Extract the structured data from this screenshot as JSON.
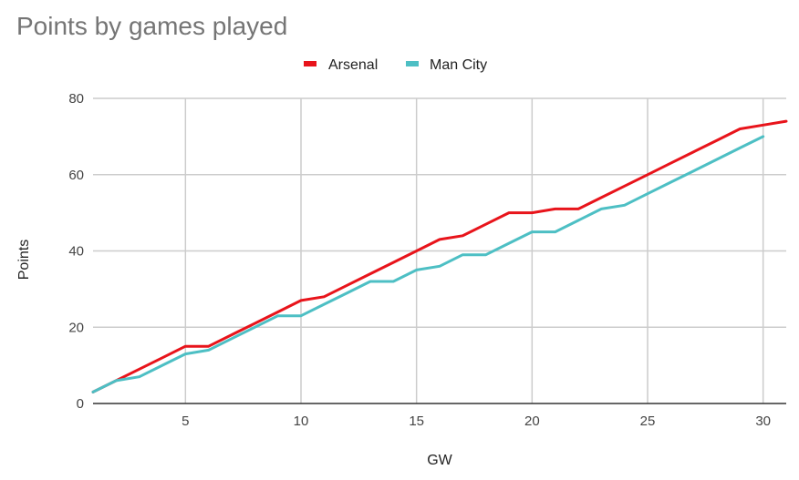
{
  "chart_data": {
    "type": "line",
    "title": "Points by games played",
    "xlabel": "GW",
    "ylabel": "Points",
    "xlim": [
      1,
      31
    ],
    "ylim": [
      0,
      80
    ],
    "x_ticks": [
      5,
      10,
      15,
      20,
      25,
      30
    ],
    "y_ticks": [
      0,
      20,
      40,
      60,
      80
    ],
    "grid": true,
    "legend_position": "top-center",
    "series": [
      {
        "name": "Arsenal",
        "color": "#e8141b",
        "x": [
          1,
          2,
          3,
          4,
          5,
          6,
          7,
          8,
          9,
          10,
          11,
          12,
          13,
          14,
          15,
          16,
          17,
          18,
          19,
          20,
          21,
          22,
          23,
          24,
          25,
          26,
          27,
          28,
          29,
          30,
          31
        ],
        "values": [
          3,
          6,
          9,
          12,
          15,
          15,
          18,
          21,
          24,
          27,
          28,
          31,
          34,
          37,
          40,
          43,
          44,
          47,
          50,
          50,
          51,
          51,
          54,
          57,
          60,
          63,
          66,
          69,
          72,
          73,
          74
        ]
      },
      {
        "name": "Man City",
        "color": "#4dbfc4",
        "x": [
          1,
          2,
          3,
          4,
          5,
          6,
          7,
          8,
          9,
          10,
          11,
          12,
          13,
          14,
          15,
          16,
          17,
          18,
          19,
          20,
          21,
          22,
          23,
          24,
          25,
          26,
          27,
          28,
          29,
          30
        ],
        "values": [
          3,
          6,
          7,
          10,
          13,
          14,
          17,
          20,
          23,
          23,
          26,
          29,
          32,
          32,
          35,
          36,
          39,
          39,
          42,
          45,
          45,
          48,
          51,
          52,
          55,
          58,
          61,
          64,
          67,
          70
        ]
      }
    ]
  }
}
